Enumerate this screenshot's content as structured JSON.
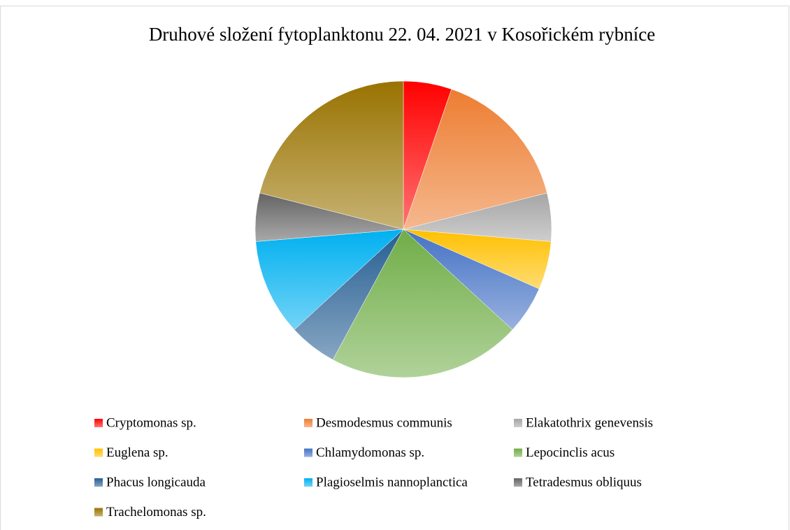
{
  "chart_data": {
    "type": "pie",
    "title": "Druhové složení fytoplanktonu 22. 04. 2021 v Kosořickém rybníce",
    "categories": [
      "Cryptomonas sp.",
      "Desmodesmus communis",
      "Elakatothrix genevensis",
      "Euglena sp.",
      "Chlamydomonas sp.",
      "Lepocinclis acus",
      "Phacus longicauda",
      "Plagioselmis nannoplanctica",
      "Tetradesmus obliquus",
      "Trachelomonas sp."
    ],
    "values": [
      1,
      3,
      1,
      1,
      1,
      4,
      1,
      2,
      1,
      4
    ],
    "colors": [
      "#ff0000",
      "#ed7d31",
      "#a5a5a5",
      "#ffc000",
      "#4472c4",
      "#70ad47",
      "#255e91",
      "#00b0f0",
      "#636363",
      "#997300"
    ],
    "legend": "bottom"
  }
}
